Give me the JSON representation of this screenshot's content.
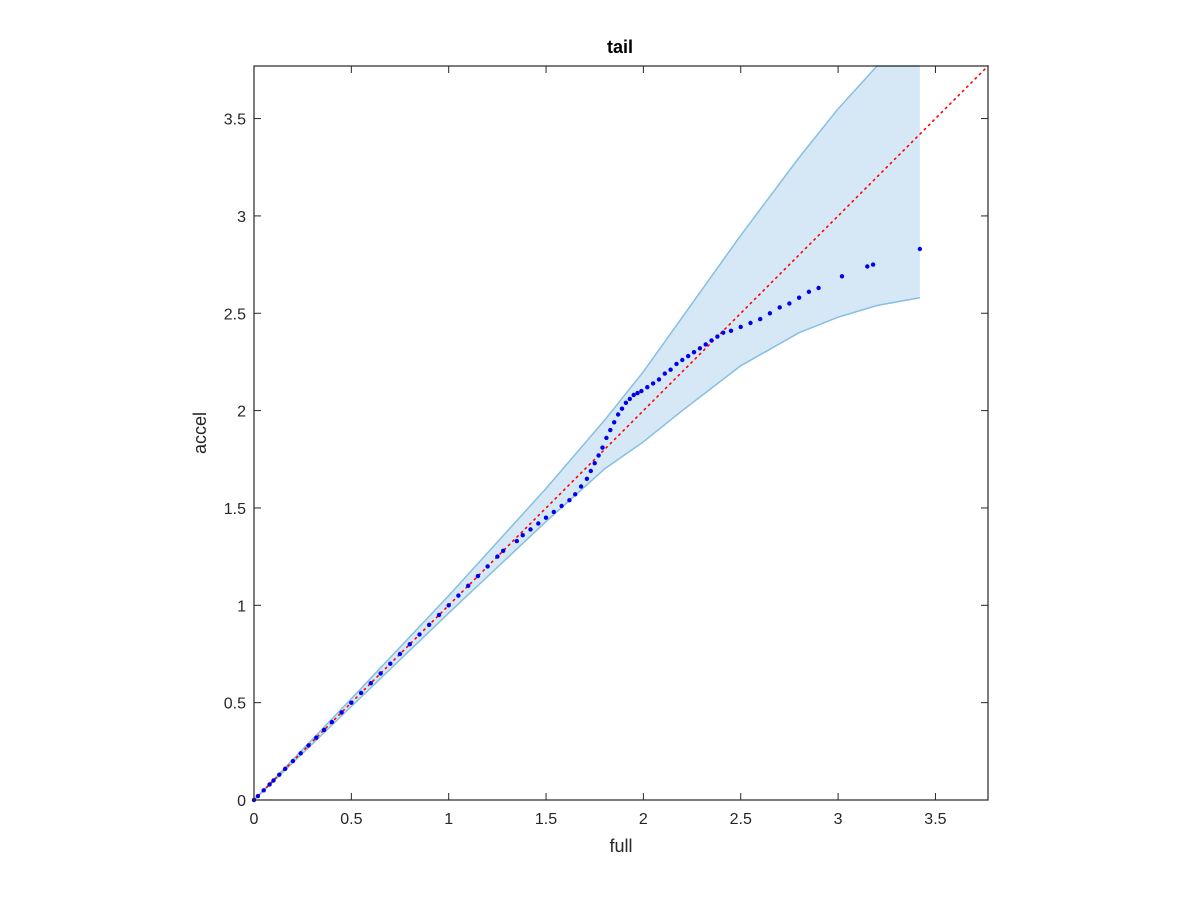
{
  "chart_data": {
    "type": "scatter",
    "title": "tail",
    "xlabel": "full",
    "ylabel": "accel",
    "xlim": [
      0,
      3.77
    ],
    "ylim": [
      0,
      3.77
    ],
    "xticks": [
      "0",
      "0.5",
      "1",
      "1.5",
      "2",
      "2.5",
      "3",
      "3.5"
    ],
    "yticks": [
      "0",
      "0.5",
      "1",
      "1.5",
      "2",
      "2.5",
      "3",
      "3.5"
    ],
    "grid": false,
    "colors": {
      "points": "#0000ee",
      "reference_line": "#ff0000",
      "band_fill": "#d6e8f5",
      "band_edge": "#86bfe2",
      "axes": "#262626"
    },
    "reference_line": {
      "x": [
        0,
        3.77
      ],
      "y": [
        0,
        3.77
      ],
      "style": "dotted"
    },
    "confidence_band": {
      "x": [
        0,
        0.5,
        1,
        1.5,
        1.8,
        2,
        2.2,
        2.5,
        2.8,
        3,
        3.2,
        3.42
      ],
      "upper": [
        0,
        0.52,
        1.05,
        1.6,
        1.95,
        2.2,
        2.48,
        2.9,
        3.3,
        3.55,
        3.77,
        3.77
      ],
      "lower": [
        0,
        0.48,
        0.96,
        1.43,
        1.7,
        1.84,
        2.0,
        2.23,
        2.4,
        2.48,
        2.54,
        2.58
      ]
    },
    "series": [
      {
        "x": [
          0,
          0.02,
          0.05,
          0.08,
          0.1,
          0.13,
          0.16,
          0.2,
          0.24,
          0.28,
          0.32,
          0.36,
          0.4,
          0.45,
          0.5,
          0.55,
          0.6,
          0.65,
          0.7,
          0.75,
          0.8,
          0.85,
          0.9,
          0.95,
          1.0,
          1.05,
          1.1,
          1.15,
          1.2,
          1.25,
          1.28,
          1.35,
          1.38,
          1.42,
          1.46,
          1.5,
          1.54,
          1.58,
          1.62,
          1.65,
          1.68,
          1.71,
          1.73,
          1.75,
          1.77,
          1.79,
          1.81,
          1.83,
          1.85,
          1.87,
          1.89,
          1.91,
          1.93,
          1.95,
          1.97,
          1.99,
          2.02,
          2.05,
          2.08,
          2.11,
          2.14,
          2.17,
          2.2,
          2.23,
          2.26,
          2.29,
          2.32,
          2.35,
          2.38,
          2.41,
          2.45,
          2.5,
          2.55,
          2.6,
          2.65,
          2.7,
          2.75,
          2.8,
          2.85,
          2.9,
          3.02,
          3.15,
          3.18,
          3.42
        ],
        "y": [
          0,
          0.02,
          0.05,
          0.08,
          0.1,
          0.13,
          0.16,
          0.2,
          0.24,
          0.28,
          0.32,
          0.36,
          0.4,
          0.45,
          0.5,
          0.55,
          0.6,
          0.65,
          0.7,
          0.75,
          0.8,
          0.85,
          0.9,
          0.95,
          1.0,
          1.05,
          1.1,
          1.15,
          1.2,
          1.25,
          1.28,
          1.33,
          1.36,
          1.39,
          1.42,
          1.45,
          1.48,
          1.51,
          1.54,
          1.57,
          1.61,
          1.65,
          1.69,
          1.73,
          1.77,
          1.81,
          1.86,
          1.9,
          1.94,
          1.98,
          2.01,
          2.04,
          2.06,
          2.08,
          2.09,
          2.1,
          2.12,
          2.14,
          2.16,
          2.19,
          2.21,
          2.24,
          2.26,
          2.28,
          2.3,
          2.32,
          2.34,
          2.36,
          2.38,
          2.4,
          2.41,
          2.43,
          2.45,
          2.47,
          2.5,
          2.53,
          2.55,
          2.58,
          2.61,
          2.63,
          2.69,
          2.74,
          2.75,
          2.83
        ]
      }
    ]
  }
}
